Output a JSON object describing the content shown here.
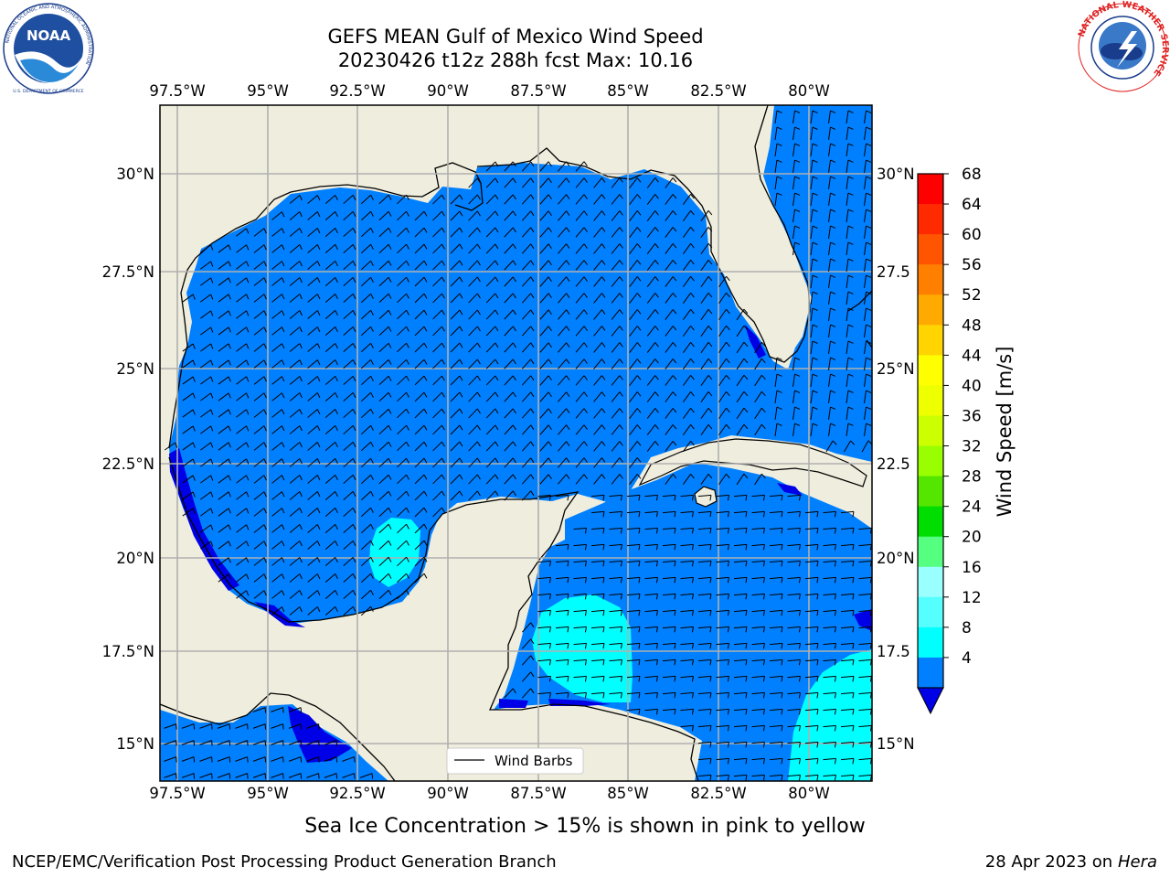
{
  "header": {
    "title_line1": "GEFS MEAN Gulf of Mexico Wind Speed",
    "title_line2": "20230426 t12z 288h fcst   Max: 10.16",
    "left_logo_text": "NOAA",
    "left_logo_ring_text": "NATIONAL OCEANIC AND ATMOSPHERIC ADMINISTRATION",
    "left_logo_bottom_text": "U.S. DEPARTMENT OF COMMERCE",
    "right_logo_ring_text": "NATIONAL WEATHER SERVICE"
  },
  "map": {
    "lon_labels": [
      "97.5°W",
      "95°W",
      "92.5°W",
      "90°W",
      "87.5°W",
      "85°W",
      "82.5°W",
      "80°W"
    ],
    "lat_labels": [
      "30°N",
      "27.5°N",
      "25°N",
      "22.5°N",
      "20°N",
      "17.5°N",
      "15°N"
    ],
    "lat_labels_right": [
      "30°N",
      "27.5",
      "25°N",
      "22.5",
      "20°N",
      "17.5",
      "15°N"
    ],
    "legend_label": "Wind Barbs",
    "colors": {
      "land": "#efeddd",
      "wind_4_8": "#0080ff",
      "wind_below_4": "#0000e6",
      "wind_8_12": "#00ffff",
      "gridline": "#b0b0b0"
    }
  },
  "colorbar": {
    "label": "Wind Speed [m/s]",
    "ticks": [
      "68",
      "64",
      "60",
      "56",
      "52",
      "48",
      "44",
      "40",
      "36",
      "32",
      "28",
      "24",
      "20",
      "16",
      "12",
      "8",
      "4"
    ],
    "colors": [
      "#ff0000",
      "#ff2a00",
      "#ff5500",
      "#ff8000",
      "#ffaa00",
      "#ffd400",
      "#ffff00",
      "#eeff00",
      "#ccff00",
      "#99ff00",
      "#55e600",
      "#00dd00",
      "#55ff80",
      "#99ffff",
      "#55ffff",
      "#00ffff",
      "#0080ff"
    ],
    "under_color": "#0000e6"
  },
  "note": "Sea Ice Concentration > 15% is shown in pink to yellow",
  "footer": {
    "left": "NCEP/EMC/Verification Post Processing Product Generation Branch",
    "right_date": "28 Apr 2023 on ",
    "right_machine": "Hera"
  }
}
